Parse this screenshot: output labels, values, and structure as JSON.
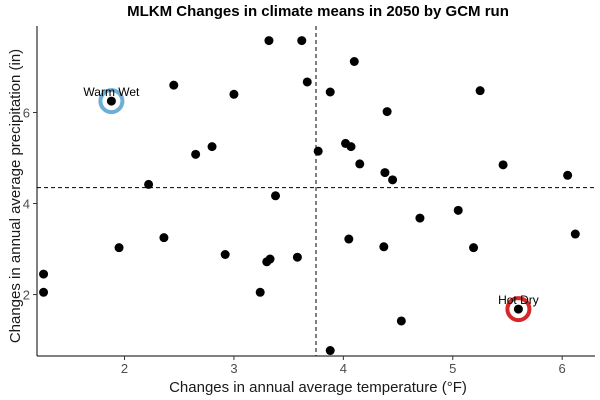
{
  "chart_data": {
    "type": "scatter",
    "title": "MLKM Changes in climate means in 2050 by GCM run",
    "xlabel": "Changes in annual average temperature (°F)",
    "ylabel": "Changes in annual average precipitation (in)",
    "xlim": [
      1.2,
      6.3
    ],
    "ylim": [
      0.65,
      7.9
    ],
    "xticks": [
      "2",
      "3",
      "4",
      "5",
      "6"
    ],
    "yticks": [
      "2",
      "4",
      "6"
    ],
    "grid": false,
    "reference_lines": {
      "x": 3.75,
      "y": 4.35
    },
    "points": [
      {
        "x": 1.88,
        "y": 6.25
      },
      {
        "x": 2.45,
        "y": 6.6
      },
      {
        "x": 3.0,
        "y": 6.4
      },
      {
        "x": 3.32,
        "y": 7.58
      },
      {
        "x": 3.62,
        "y": 7.58
      },
      {
        "x": 4.1,
        "y": 7.12
      },
      {
        "x": 3.67,
        "y": 6.67
      },
      {
        "x": 3.88,
        "y": 6.45
      },
      {
        "x": 4.4,
        "y": 6.02
      },
      {
        "x": 5.25,
        "y": 6.48
      },
      {
        "x": 2.65,
        "y": 5.08
      },
      {
        "x": 2.8,
        "y": 5.25
      },
      {
        "x": 3.77,
        "y": 5.15
      },
      {
        "x": 4.02,
        "y": 5.32
      },
      {
        "x": 4.07,
        "y": 5.25
      },
      {
        "x": 4.15,
        "y": 4.87
      },
      {
        "x": 4.38,
        "y": 4.68
      },
      {
        "x": 4.45,
        "y": 4.52
      },
      {
        "x": 5.46,
        "y": 4.85
      },
      {
        "x": 6.05,
        "y": 4.62
      },
      {
        "x": 2.22,
        "y": 4.42
      },
      {
        "x": 3.38,
        "y": 4.17
      },
      {
        "x": 4.7,
        "y": 3.68
      },
      {
        "x": 5.05,
        "y": 3.85
      },
      {
        "x": 6.12,
        "y": 3.33
      },
      {
        "x": 1.95,
        "y": 3.03
      },
      {
        "x": 2.36,
        "y": 3.25
      },
      {
        "x": 2.92,
        "y": 2.88
      },
      {
        "x": 3.3,
        "y": 2.72
      },
      {
        "x": 3.33,
        "y": 2.78
      },
      {
        "x": 3.58,
        "y": 2.82
      },
      {
        "x": 4.05,
        "y": 3.22
      },
      {
        "x": 4.37,
        "y": 3.05
      },
      {
        "x": 5.19,
        "y": 3.03
      },
      {
        "x": 1.26,
        "y": 2.45
      },
      {
        "x": 1.26,
        "y": 2.05
      },
      {
        "x": 3.24,
        "y": 2.05
      },
      {
        "x": 5.6,
        "y": 1.68
      },
      {
        "x": 4.53,
        "y": 1.42
      },
      {
        "x": 3.88,
        "y": 0.77
      }
    ],
    "highlights": [
      {
        "label": "Warm Wet",
        "x": 1.88,
        "y": 6.25,
        "color": "#6baed6"
      },
      {
        "label": "Hot Dry",
        "x": 5.6,
        "y": 1.68,
        "color": "#d62728"
      }
    ]
  }
}
